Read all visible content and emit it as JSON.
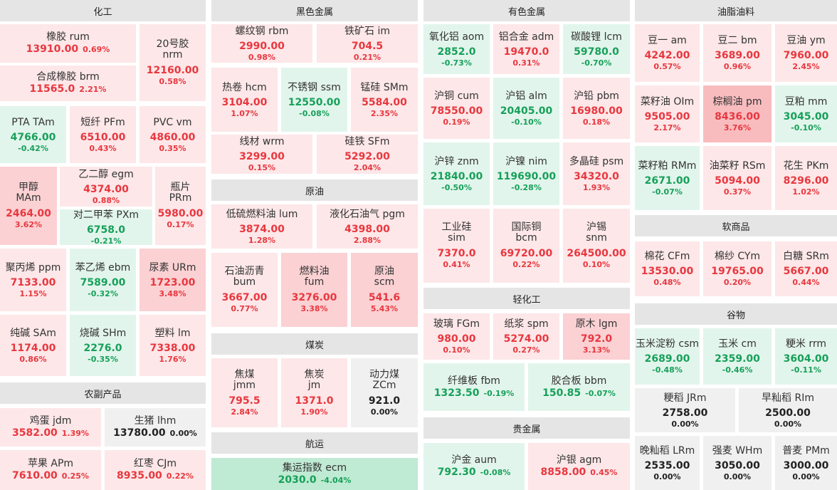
{
  "sections": {
    "chem": "化工",
    "ferrous": "黑色金属",
    "nonferrous": "有色金属",
    "oils": "油脂油料",
    "crude": "原油",
    "coal": "煤炭",
    "shipping": "航运",
    "light": "轻化工",
    "precious": "贵金属",
    "agri": "农副产品",
    "soft": "软商品",
    "grain": "谷物"
  },
  "tiles": [
    {
      "id": "rum",
      "l1": "橡胶  rum",
      "price": "13910.00",
      "pct": "0.69%",
      "dir": "up"
    },
    {
      "id": "nrm",
      "l1": "20号胶",
      "l2": "nrm",
      "price": "12160.00",
      "pct": "0.58%",
      "dir": "up"
    },
    {
      "id": "brm",
      "l1": "合成橡胶  brm",
      "price": "11565.0",
      "pct": "2.21%",
      "dir": "up"
    },
    {
      "id": "tam",
      "l1": "PTA  TAm",
      "price": "4766.00",
      "pct": "-0.42%",
      "dir": "down"
    },
    {
      "id": "pfm",
      "l1": "短纤  PFm",
      "price": "6510.00",
      "pct": "0.43%",
      "dir": "up"
    },
    {
      "id": "vm",
      "l1": "PVC  vm",
      "price": "4860.00",
      "pct": "0.35%",
      "dir": "up"
    },
    {
      "id": "mam",
      "l1": "甲醇",
      "l2": "MAm",
      "price": "2464.00",
      "pct": "3.62%",
      "dir": "up"
    },
    {
      "id": "egm",
      "l1": "乙二醇  egm",
      "price": "4374.00",
      "pct": "0.88%",
      "dir": "up"
    },
    {
      "id": "prm",
      "l1": "瓶片",
      "l2": "PRm",
      "price": "5980.00",
      "pct": "0.17%",
      "dir": "up"
    },
    {
      "id": "pxm",
      "l1": "对二甲苯  PXm",
      "price": "6758.0",
      "pct": "-0.21%",
      "dir": "down"
    },
    {
      "id": "ppm",
      "l1": "聚丙烯  ppm",
      "price": "7133.00",
      "pct": "1.15%",
      "dir": "up"
    },
    {
      "id": "ebm",
      "l1": "苯乙烯  ebm",
      "price": "7589.00",
      "pct": "-0.32%",
      "dir": "down"
    },
    {
      "id": "urm",
      "l1": "尿素  URm",
      "price": "1723.00",
      "pct": "3.48%",
      "dir": "up"
    },
    {
      "id": "sam",
      "l1": "纯碱  SAm",
      "price": "1174.00",
      "pct": "0.86%",
      "dir": "up"
    },
    {
      "id": "shm",
      "l1": "烧碱  SHm",
      "price": "2276.0",
      "pct": "-0.35%",
      "dir": "down"
    },
    {
      "id": "lm",
      "l1": "塑料  lm",
      "price": "7338.00",
      "pct": "1.76%",
      "dir": "up"
    },
    {
      "id": "jdm",
      "l1": "鸡蛋  jdm",
      "price": "3582.00",
      "pct": "1.39%",
      "dir": "up"
    },
    {
      "id": "lhm",
      "l1": "生猪  lhm",
      "price": "13780.00",
      "pct": "0.00%",
      "dir": "flat"
    },
    {
      "id": "apm",
      "l1": "苹果  APm",
      "price": "7610.00",
      "pct": "0.25%",
      "dir": "up"
    },
    {
      "id": "cjm",
      "l1": "红枣  CJm",
      "price": "8935.00",
      "pct": "0.22%",
      "dir": "up"
    },
    {
      "id": "rbm",
      "l1": "螺纹钢  rbm",
      "price": "2990.00",
      "pct": "0.98%",
      "dir": "up"
    },
    {
      "id": "im",
      "l1": "铁矿石  im",
      "price": "704.5",
      "pct": "0.21%",
      "dir": "up"
    },
    {
      "id": "hcm",
      "l1": "热卷  hcm",
      "price": "3104.00",
      "pct": "1.07%",
      "dir": "up"
    },
    {
      "id": "ssm",
      "l1": "不锈钢  ssm",
      "price": "12550.00",
      "pct": "-0.08%",
      "dir": "down"
    },
    {
      "id": "smm",
      "l1": "锰硅  SMm",
      "price": "5584.00",
      "pct": "2.35%",
      "dir": "up"
    },
    {
      "id": "wrm",
      "l1": "线材  wrm",
      "price": "3299.00",
      "pct": "0.15%",
      "dir": "up"
    },
    {
      "id": "sfm",
      "l1": "硅铁  SFm",
      "price": "5292.00",
      "pct": "2.04%",
      "dir": "up"
    },
    {
      "id": "lum",
      "l1": "低硫燃料油  lum",
      "price": "3874.00",
      "pct": "1.28%",
      "dir": "up"
    },
    {
      "id": "pgm",
      "l1": "液化石油气  pgm",
      "price": "4398.00",
      "pct": "2.88%",
      "dir": "up"
    },
    {
      "id": "bum",
      "l1": "石油沥青",
      "l2": "bum",
      "price": "3667.00",
      "pct": "0.77%",
      "dir": "up"
    },
    {
      "id": "fum",
      "l1": "燃料油",
      "l2": "fum",
      "price": "3276.00",
      "pct": "3.38%",
      "dir": "up"
    },
    {
      "id": "scm",
      "l1": "原油",
      "l2": "scm",
      "price": "541.6",
      "pct": "5.43%",
      "dir": "up"
    },
    {
      "id": "jmm",
      "l1": "焦煤",
      "l2": "jmm",
      "price": "795.5",
      "pct": "2.84%",
      "dir": "up"
    },
    {
      "id": "jm",
      "l1": "焦炭",
      "l2": "jm",
      "price": "1371.0",
      "pct": "1.90%",
      "dir": "up"
    },
    {
      "id": "zcm",
      "l1": "动力煤",
      "l2": "ZCm",
      "price": "921.0",
      "pct": "0.00%",
      "dir": "flat"
    },
    {
      "id": "ecm",
      "l1": "集运指数  ecm",
      "price": "2030.0",
      "pct": "-4.04%",
      "dir": "down"
    },
    {
      "id": "aom",
      "l1": "氧化铝  aom",
      "price": "2852.0",
      "pct": "-0.73%",
      "dir": "down"
    },
    {
      "id": "adm",
      "l1": "铝合金  adm",
      "price": "19470.0",
      "pct": "0.31%",
      "dir": "up"
    },
    {
      "id": "lcm",
      "l1": "碳酸锂  lcm",
      "price": "59780.0",
      "pct": "-0.70%",
      "dir": "down"
    },
    {
      "id": "cum",
      "l1": "沪铜  cum",
      "price": "78550.00",
      "pct": "0.19%",
      "dir": "up"
    },
    {
      "id": "alm",
      "l1": "沪铝  alm",
      "price": "20405.00",
      "pct": "-0.10%",
      "dir": "down"
    },
    {
      "id": "pbm",
      "l1": "沪铅  pbm",
      "price": "16980.00",
      "pct": "0.18%",
      "dir": "up"
    },
    {
      "id": "znm",
      "l1": "沪锌  znm",
      "price": "21840.00",
      "pct": "-0.50%",
      "dir": "down"
    },
    {
      "id": "nim",
      "l1": "沪镍  nim",
      "price": "119690.00",
      "pct": "-0.28%",
      "dir": "down"
    },
    {
      "id": "psm",
      "l1": "多晶硅  psm",
      "price": "34320.0",
      "pct": "1.93%",
      "dir": "up"
    },
    {
      "id": "sim",
      "l1": "工业硅",
      "l2": "sim",
      "price": "7370.0",
      "pct": "0.41%",
      "dir": "up"
    },
    {
      "id": "bcm",
      "l1": "国际铜",
      "l2": "bcm",
      "price": "69720.00",
      "pct": "0.22%",
      "dir": "up"
    },
    {
      "id": "snm",
      "l1": "沪锡",
      "l2": "snm",
      "price": "264500.00",
      "pct": "0.10%",
      "dir": "up"
    },
    {
      "id": "fgm",
      "l1": "玻璃  FGm",
      "price": "980.00",
      "pct": "0.10%",
      "dir": "up"
    },
    {
      "id": "spm",
      "l1": "纸浆  spm",
      "price": "5274.00",
      "pct": "0.27%",
      "dir": "up"
    },
    {
      "id": "lgm",
      "l1": "原木  lgm",
      "price": "792.0",
      "pct": "3.13%",
      "dir": "up"
    },
    {
      "id": "fbm",
      "l1": "纤维板  fbm",
      "price": "1323.50",
      "pct": "-0.19%",
      "dir": "down"
    },
    {
      "id": "bbm",
      "l1": "胶合板  bbm",
      "price": "150.85",
      "pct": "-0.07%",
      "dir": "down"
    },
    {
      "id": "aum",
      "l1": "沪金  aum",
      "price": "792.30",
      "pct": "-0.08%",
      "dir": "down"
    },
    {
      "id": "agm",
      "l1": "沪银  agm",
      "price": "8858.00",
      "pct": "0.45%",
      "dir": "up"
    },
    {
      "id": "am",
      "l1": "豆一  am",
      "price": "4242.00",
      "pct": "0.57%",
      "dir": "up"
    },
    {
      "id": "bm",
      "l1": "豆二  bm",
      "price": "3689.00",
      "pct": "0.96%",
      "dir": "up"
    },
    {
      "id": "ym",
      "l1": "豆油  ym",
      "price": "7960.00",
      "pct": "2.45%",
      "dir": "up"
    },
    {
      "id": "olm",
      "l1": "菜籽油  OIm",
      "price": "9505.00",
      "pct": "2.17%",
      "dir": "up"
    },
    {
      "id": "pm",
      "l1": "棕榈油  pm",
      "price": "8436.00",
      "pct": "3.76%",
      "dir": "up"
    },
    {
      "id": "mm",
      "l1": "豆粕  mm",
      "price": "3045.00",
      "pct": "-0.10%",
      "dir": "down"
    },
    {
      "id": "rmm",
      "l1": "菜籽粕  RMm",
      "price": "2671.00",
      "pct": "-0.07%",
      "dir": "down"
    },
    {
      "id": "rsm",
      "l1": "油菜籽  RSm",
      "price": "5094.00",
      "pct": "0.37%",
      "dir": "up"
    },
    {
      "id": "pkm",
      "l1": "花生  PKm",
      "price": "8296.00",
      "pct": "1.02%",
      "dir": "up"
    },
    {
      "id": "cfm",
      "l1": "棉花  CFm",
      "price": "13530.00",
      "pct": "0.48%",
      "dir": "up"
    },
    {
      "id": "cym",
      "l1": "棉纱  CYm",
      "price": "19765.00",
      "pct": "0.20%",
      "dir": "up"
    },
    {
      "id": "srm",
      "l1": "白糖  SRm",
      "price": "5667.00",
      "pct": "0.44%",
      "dir": "up"
    },
    {
      "id": "csm",
      "l1": "玉米淀粉  csm",
      "price": "2689.00",
      "pct": "-0.48%",
      "dir": "down"
    },
    {
      "id": "cm",
      "l1": "玉米  cm",
      "price": "2359.00",
      "pct": "-0.46%",
      "dir": "down"
    },
    {
      "id": "rrm",
      "l1": "粳米  rrm",
      "price": "3604.00",
      "pct": "-0.11%",
      "dir": "down"
    },
    {
      "id": "jrm",
      "l1": "粳稻  JRm",
      "price": "2758.00",
      "pct": "0.00%",
      "dir": "flat"
    },
    {
      "id": "rim",
      "l1": "早籼稻  RIm",
      "price": "2500.00",
      "pct": "0.00%",
      "dir": "flat"
    },
    {
      "id": "lrm",
      "l1": "晚籼稻  LRm",
      "price": "2535.00",
      "pct": "0.00%",
      "dir": "flat"
    },
    {
      "id": "whm",
      "l1": "强麦  WHm",
      "price": "3050.00",
      "pct": "0.00%",
      "dir": "flat"
    },
    {
      "id": "pmm",
      "l1": "普麦  PMm",
      "price": "3000.00",
      "pct": "0.00%",
      "dir": "flat"
    }
  ]
}
